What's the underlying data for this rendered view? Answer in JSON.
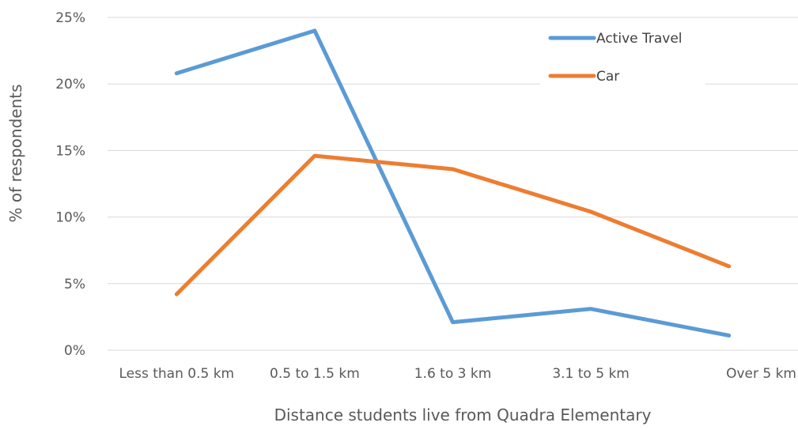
{
  "chart_data": {
    "type": "line",
    "categories": [
      "Less than 0.5 km",
      "0.5 to 1.5 km",
      "1.6 to 3 km",
      "3.1 to 5 km",
      "Over 5 km"
    ],
    "series": [
      {
        "name": "Active Travel",
        "color": "#5b9bd5",
        "values": [
          20.8,
          24.0,
          2.1,
          3.1,
          1.1
        ]
      },
      {
        "name": "Car",
        "color": "#ed7d31",
        "values": [
          4.2,
          14.6,
          13.6,
          10.4,
          6.3
        ]
      }
    ],
    "xlabel": "Distance students live from Quadra Elementary",
    "ylabel": "% of respondents",
    "ylim": [
      0,
      25
    ],
    "yticks": [
      0,
      5,
      10,
      15,
      20,
      25
    ],
    "ytick_labels": [
      "0%",
      "5%",
      "10%",
      "15%",
      "20%",
      "25%"
    ],
    "grid": true,
    "legend_position": "top-right"
  }
}
